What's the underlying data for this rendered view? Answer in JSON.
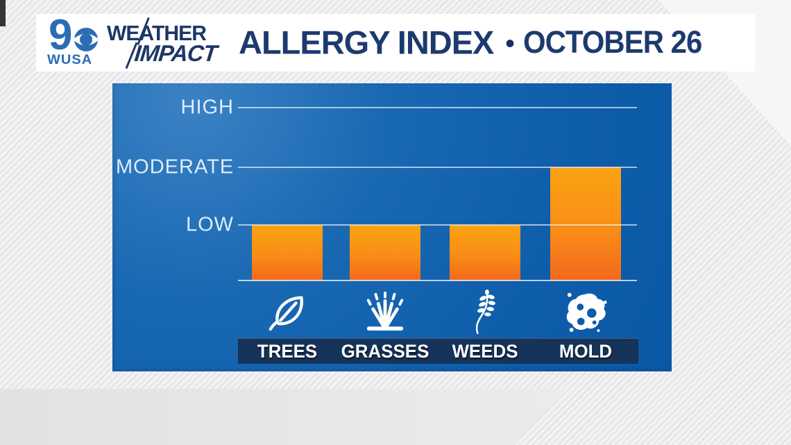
{
  "header": {
    "station": {
      "channel": "9",
      "callsign": "WUSA"
    },
    "brand": {
      "line1": "WEATHER",
      "line2": "IMPACT"
    },
    "title": "ALLERGY INDEX",
    "separator": "•",
    "date": "OCTOBER 26"
  },
  "chart_data": {
    "type": "bar",
    "title": "ALLERGY INDEX",
    "subtitle_date": "OCTOBER 26",
    "categories": [
      "TREES",
      "GRASSES",
      "WEEDS",
      "MOLD"
    ],
    "values": [
      "LOW",
      "LOW",
      "LOW",
      "MODERATE"
    ],
    "numeric_values": [
      1,
      1,
      1,
      2
    ],
    "value_scale": {
      "LOW": 1,
      "MODERATE": 2,
      "HIGH": 3
    },
    "ytick_labels": [
      "HIGH",
      "MODERATE",
      "LOW"
    ],
    "ylim": [
      0,
      3.3
    ],
    "grid": true,
    "legend": "none",
    "icons": [
      "leaf-icon",
      "grass-icon",
      "weed-icon",
      "mold-icon"
    ],
    "colors": {
      "bar_top": "#fba313",
      "bar_bottom": "#f3681e",
      "panel_blue": "#0e5dab",
      "label_bar_navy": "#16335a",
      "gridline": "#ffffff",
      "tick_text": "#dfecfa",
      "header_navy": "#1d3a6f",
      "logo_blue": "#2b6cb4"
    }
  }
}
